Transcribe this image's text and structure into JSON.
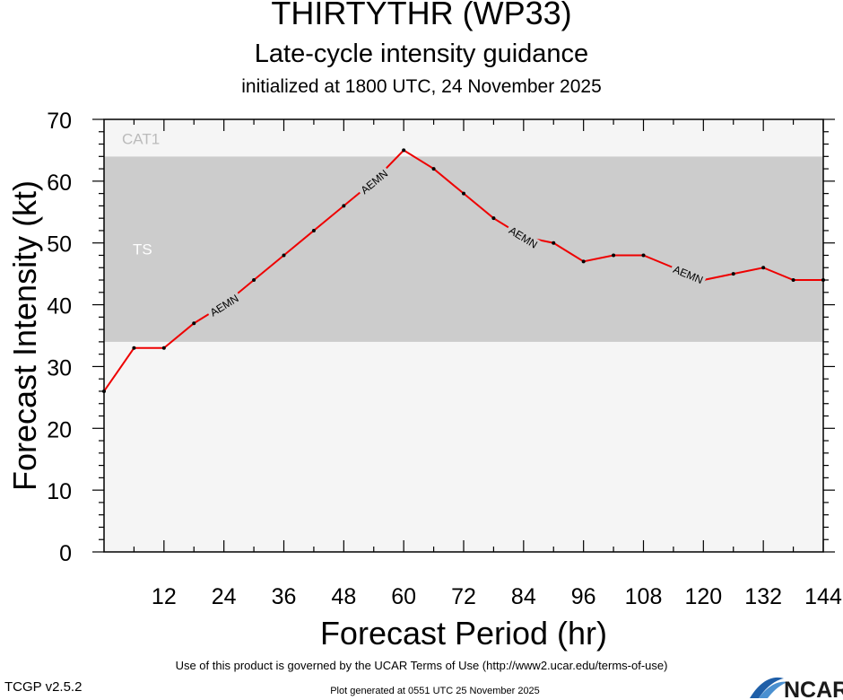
{
  "header": {
    "title": "THIRTYTHR (WP33)",
    "subtitle": "Late-cycle intensity guidance",
    "init": "initialized at 1800 UTC, 24 November 2025"
  },
  "chart_data": {
    "type": "line",
    "xlabel": "Forecast Period (hr)",
    "ylabel": "Forecast Intensity (kt)",
    "xlim": [
      0,
      144
    ],
    "ylim": [
      0,
      70
    ],
    "x_ticks": [
      12,
      24,
      36,
      48,
      60,
      72,
      84,
      96,
      108,
      120,
      132,
      144
    ],
    "y_ticks": [
      0,
      10,
      20,
      30,
      40,
      50,
      60,
      70
    ],
    "bands": [
      {
        "label": "TS",
        "from": 34,
        "to": 64,
        "color": "#cccccc"
      },
      {
        "label": "CAT1",
        "from": 64,
        "to": 70,
        "color": "#f5f5f5"
      }
    ],
    "below_band_color": "#f5f5f5",
    "series": [
      {
        "name": "AEMN",
        "color": "#ee0000",
        "x": [
          0,
          6,
          12,
          18,
          24,
          30,
          36,
          42,
          48,
          54,
          60,
          66,
          72,
          78,
          84,
          90,
          96,
          102,
          108,
          114,
          120,
          126,
          132,
          138,
          144
        ],
        "y": [
          26,
          33,
          33,
          37,
          40,
          44,
          48,
          52,
          56,
          60,
          65,
          62,
          58,
          54,
          51,
          50,
          47,
          48,
          48,
          46,
          44,
          45,
          46,
          44,
          44
        ],
        "label_x": [
          24,
          54,
          84,
          117
        ]
      }
    ]
  },
  "footer": {
    "terms": "Use of this product is governed by the UCAR Terms of Use (http://www2.ucar.edu/terms-of-use)",
    "version": "TCGP v2.5.2",
    "generated": "Plot generated at 0551 UTC   25 November 2025",
    "logo": "NCAR"
  }
}
